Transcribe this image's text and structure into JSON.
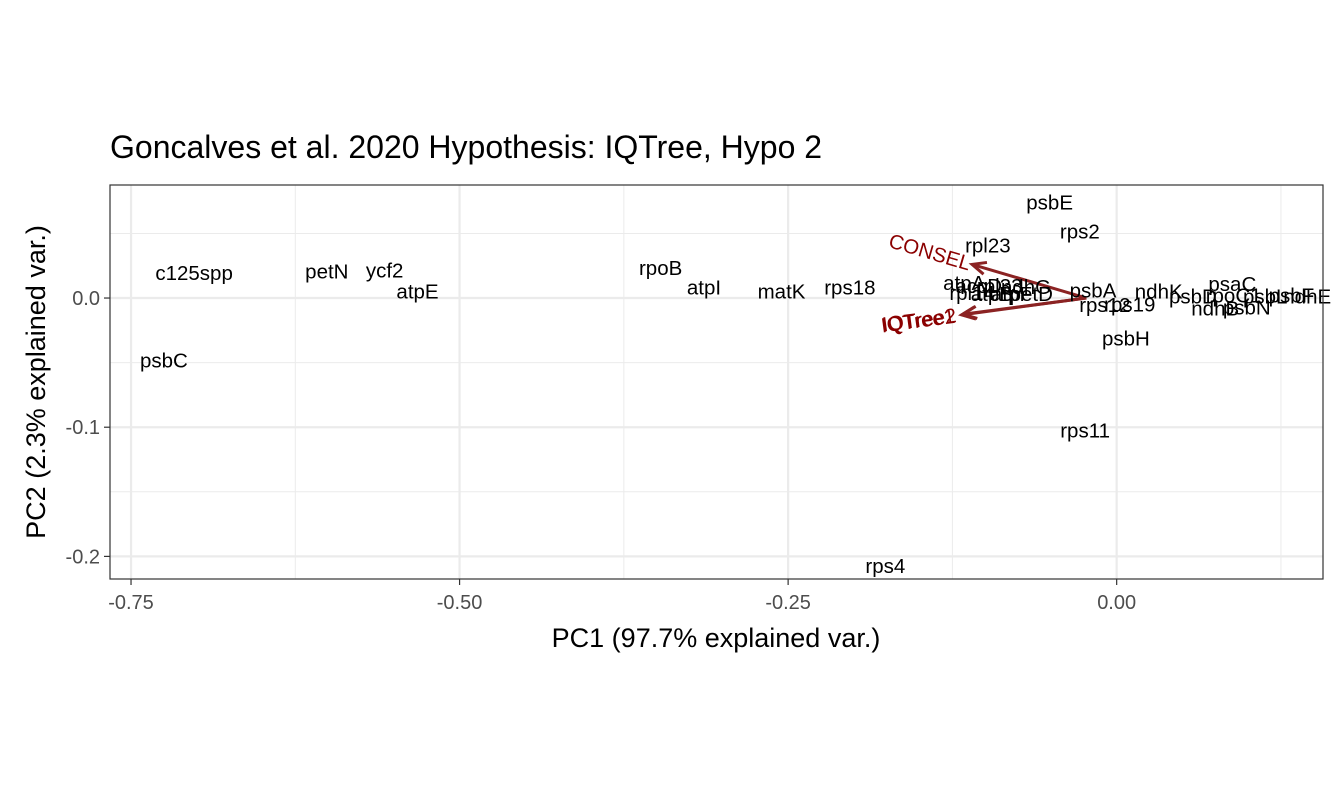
{
  "chart_data": {
    "type": "scatter",
    "title": "Goncalves et al. 2020 Hypothesis: IQTree,  Hypo 2",
    "xlabel": "PC1 (97.7% explained var.)",
    "ylabel": "PC2 (2.3% explained var.)",
    "xlim": [
      -0.766,
      0.157
    ],
    "ylim": [
      -0.2175,
      0.0875
    ],
    "x_ticks": [
      -0.75,
      -0.5,
      -0.25,
      0.0
    ],
    "x_tick_labels": [
      "-0.75",
      "-0.50",
      "-0.25",
      "0.00"
    ],
    "y_ticks": [
      -0.2,
      -0.1,
      0.0
    ],
    "y_tick_labels": [
      "-0.2",
      "-0.1",
      "0.0"
    ],
    "grid": true,
    "points": [
      {
        "label": "c125spp",
        "x": -0.702,
        "y": 0.0195
      },
      {
        "label": "psbC",
        "x": -0.725,
        "y": -0.0485
      },
      {
        "label": "petN",
        "x": -0.601,
        "y": 0.0205
      },
      {
        "label": "ycf2",
        "x": -0.557,
        "y": 0.0215
      },
      {
        "label": "atpE",
        "x": -0.532,
        "y": 0.005
      },
      {
        "label": "rpoB",
        "x": -0.347,
        "y": 0.0232
      },
      {
        "label": "atpI",
        "x": -0.314,
        "y": 0.0082
      },
      {
        "label": "matK",
        "x": -0.255,
        "y": 0.005
      },
      {
        "label": "rps18",
        "x": -0.203,
        "y": 0.008
      },
      {
        "label": "rpl23",
        "x": -0.098,
        "y": 0.0405
      },
      {
        "label": "psbE",
        "x": -0.051,
        "y": 0.0738
      },
      {
        "label": "rps2",
        "x": -0.028,
        "y": 0.0515
      },
      {
        "label": "atpA",
        "x": -0.116,
        "y": 0.0115
      },
      {
        "label": "accD",
        "x": -0.105,
        "y": 0.0095
      },
      {
        "label": "rpl33",
        "x": -0.089,
        "y": 0.0095
      },
      {
        "label": "ndhG",
        "x": -0.069,
        "y": 0.0085
      },
      {
        "label": "rpl14",
        "x": -0.11,
        "y": 0.004
      },
      {
        "label": "atpB",
        "x": -0.095,
        "y": 0.003
      },
      {
        "label": "atpF",
        "x": -0.08,
        "y": 0.003
      },
      {
        "label": "petD",
        "x": -0.065,
        "y": 0.003
      },
      {
        "label": "psbA",
        "x": -0.018,
        "y": 0.006
      },
      {
        "label": "rps12",
        "x": -0.009,
        "y": -0.0055
      },
      {
        "label": "rps19",
        "x": 0.01,
        "y": -0.005
      },
      {
        "label": "psbH",
        "x": 0.007,
        "y": -0.0315
      },
      {
        "label": "rps11",
        "x": -0.024,
        "y": -0.1025
      },
      {
        "label": "rps4",
        "x": -0.176,
        "y": -0.2075
      },
      {
        "label": "ndhK",
        "x": 0.032,
        "y": 0.005
      },
      {
        "label": "psaC",
        "x": 0.088,
        "y": 0.011
      },
      {
        "label": "psbD",
        "x": 0.058,
        "y": 0.001
      },
      {
        "label": "rpoC1",
        "x": 0.089,
        "y": 0.002
      },
      {
        "label": "ndhB",
        "x": 0.075,
        "y": -0.008
      },
      {
        "label": "psbN",
        "x": 0.099,
        "y": -0.0075
      },
      {
        "label": "psbL",
        "x": 0.113,
        "y": 0.001
      },
      {
        "label": "psbF",
        "x": 0.133,
        "y": 0.002
      },
      {
        "label": "ndhE",
        "x": 0.145,
        "y": 0.001
      }
    ],
    "loadings": [
      {
        "label": "CONSEL",
        "x": -0.11,
        "y": 0.026
      },
      {
        "label": "IQTree2",
        "x": -0.117,
        "y": -0.0125
      },
      {
        "label": "IQTree1",
        "x": -0.118,
        "y": -0.013
      }
    ],
    "loading_origin": [
      -0.023,
      0.0
    ],
    "colors": {
      "points": "#000000",
      "loadings": "#8b0000",
      "arrow": "#8b2323",
      "grid": "#ebebeb",
      "panel_border": "#333333"
    }
  }
}
